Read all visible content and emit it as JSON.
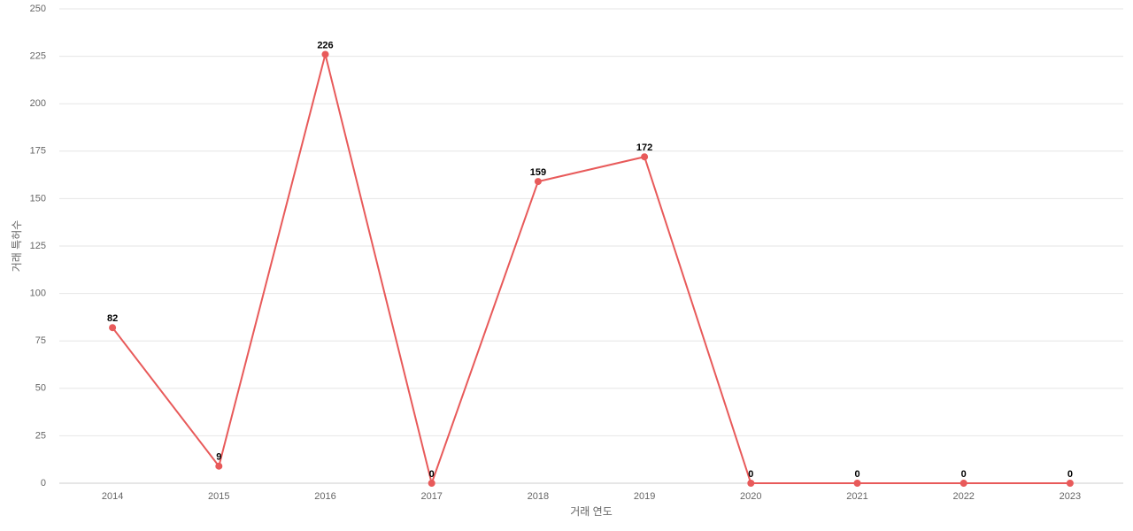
{
  "chart_data": {
    "type": "line",
    "categories": [
      "2014",
      "2015",
      "2016",
      "2017",
      "2018",
      "2019",
      "2020",
      "2021",
      "2022",
      "2023"
    ],
    "series": [
      {
        "name": "거래 특허수",
        "color": "#e85a5a",
        "values": [
          82,
          9,
          226,
          0,
          159,
          172,
          0,
          0,
          0,
          0
        ]
      }
    ],
    "xlabel": "거래 연도",
    "ylabel": "거래 특허수",
    "ylim": [
      0,
      250
    ],
    "yticks": [
      0,
      25,
      50,
      75,
      100,
      125,
      150,
      175,
      200,
      225,
      250
    ],
    "grid": true,
    "data_labels": true
  }
}
